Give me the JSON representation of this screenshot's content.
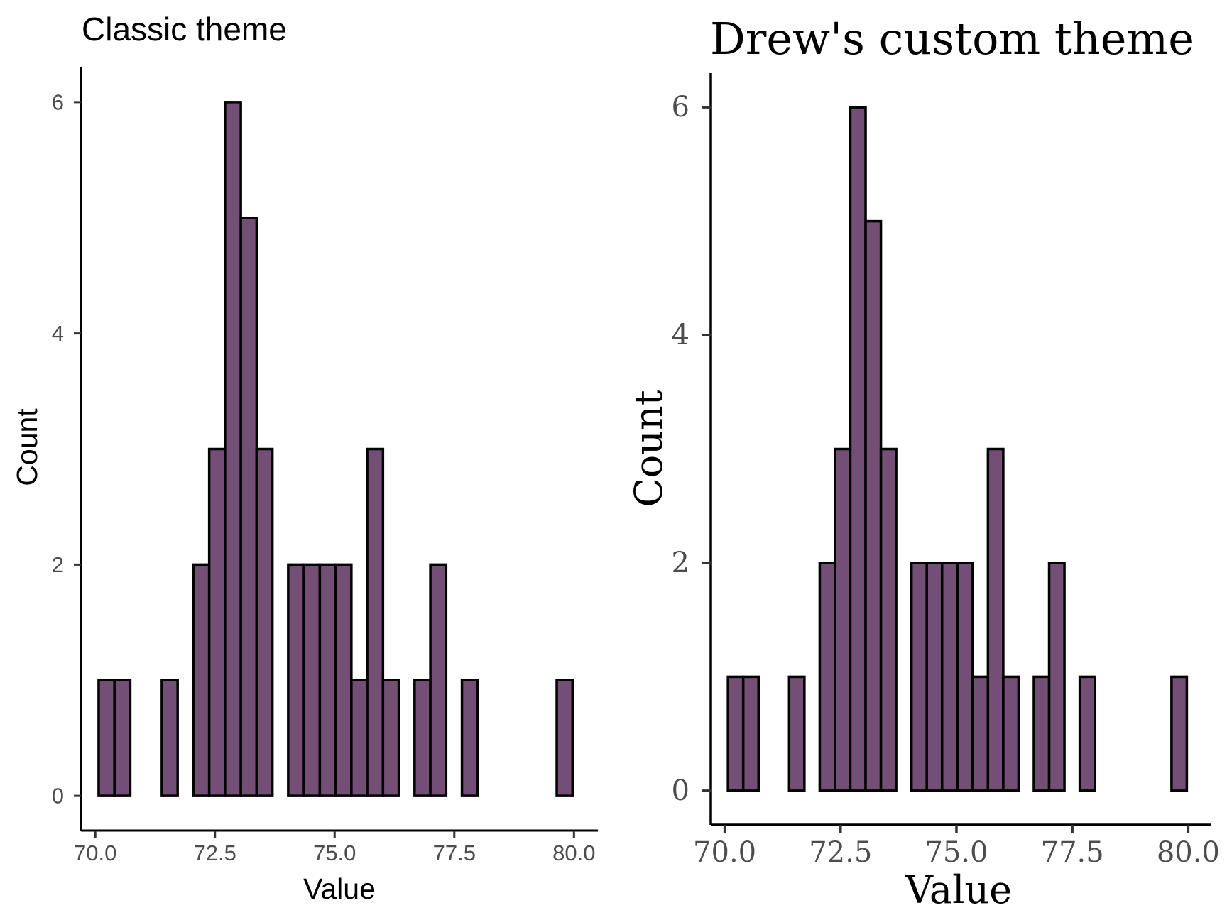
{
  "chart_data": [
    {
      "type": "bar",
      "title": "Classic theme",
      "xlabel": "Value",
      "ylabel": "Count",
      "xlim": [
        69.7,
        80.5
      ],
      "ylim": [
        -0.3,
        6.3
      ],
      "x_ticks": [
        70.0,
        72.5,
        75.0,
        77.5,
        80.0
      ],
      "x_tick_labels": [
        "70.0",
        "72.5",
        "75.0",
        "77.5",
        "80.0"
      ],
      "y_ticks": [
        0,
        2,
        4,
        6
      ],
      "y_tick_labels": [
        "0",
        "2",
        "4",
        "6"
      ],
      "bin_width": 0.33,
      "bins_start": [
        70.07,
        70.4,
        70.73,
        71.06,
        71.39,
        71.72,
        72.05,
        72.38,
        72.71,
        73.04,
        73.37,
        73.7,
        74.03,
        74.36,
        74.69,
        75.02,
        75.35,
        75.68,
        76.01,
        76.34,
        76.67,
        77.0,
        77.33,
        77.66,
        77.99,
        78.32,
        78.65,
        78.98,
        79.31,
        79.64
      ],
      "counts": [
        1,
        1,
        0,
        0,
        1,
        0,
        2,
        3,
        6,
        5,
        3,
        0,
        2,
        2,
        2,
        2,
        1,
        3,
        1,
        0,
        1,
        2,
        0,
        1,
        0,
        0,
        0,
        0,
        0,
        1
      ],
      "fill_color": "#734f76",
      "edge_color": "#000000",
      "grid": false
    },
    {
      "type": "bar",
      "title": "Drew's custom theme",
      "xlabel": "Value",
      "ylabel": "Count",
      "xlim": [
        69.7,
        80.5
      ],
      "ylim": [
        -0.3,
        6.3
      ],
      "x_ticks": [
        70.0,
        72.5,
        75.0,
        77.5,
        80.0
      ],
      "x_tick_labels": [
        "70.0",
        "72.5",
        "75.0",
        "77.5",
        "80.0"
      ],
      "y_ticks": [
        0,
        2,
        4,
        6
      ],
      "y_tick_labels": [
        "0",
        "2",
        "4",
        "6"
      ],
      "bin_width": 0.33,
      "bins_start": [
        70.07,
        70.4,
        70.73,
        71.06,
        71.39,
        71.72,
        72.05,
        72.38,
        72.71,
        73.04,
        73.37,
        73.7,
        74.03,
        74.36,
        74.69,
        75.02,
        75.35,
        75.68,
        76.01,
        76.34,
        76.67,
        77.0,
        77.33,
        77.66,
        77.99,
        78.32,
        78.65,
        78.98,
        79.31,
        79.64
      ],
      "counts": [
        1,
        1,
        0,
        0,
        1,
        0,
        2,
        3,
        6,
        5,
        3,
        0,
        2,
        2,
        2,
        2,
        1,
        3,
        1,
        0,
        1,
        2,
        0,
        1,
        0,
        0,
        0,
        0,
        0,
        1
      ],
      "fill_color": "#734f76",
      "edge_color": "#000000",
      "grid": false
    }
  ]
}
